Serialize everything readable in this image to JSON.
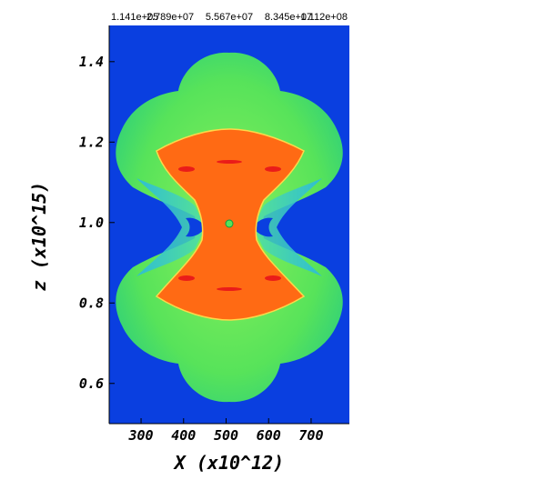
{
  "chart_data": {
    "type": "heatmap",
    "title": "",
    "xlabel": "X (x10^12)",
    "ylabel": "z (x10^15)",
    "xlim": [
      225,
      790
    ],
    "ylim": [
      0.5,
      1.49
    ],
    "x_ticks": [
      "300",
      "400",
      "500",
      "600",
      "700"
    ],
    "x_tick_values": [
      300,
      400,
      500,
      600,
      700
    ],
    "y_ticks": [
      "0.6",
      "0.8",
      "1.0",
      "1.2",
      "1.4"
    ],
    "y_tick_values": [
      0.6,
      0.8,
      1.0,
      1.2,
      1.4
    ],
    "colorbar": {
      "labels": [
        "1.141e+05",
        "2.789e+07",
        "5.567e+07",
        "8.345e+07",
        "1.112e+08"
      ],
      "placement": "top",
      "colors": [
        "#0000ff",
        "#00ffff",
        "#00ff66",
        "#b8ff00",
        "#ffff00",
        "#ff7700",
        "#ff0000"
      ]
    },
    "field": {
      "background": "#0a3fe0",
      "shell_color": "#57e35a",
      "core_color": "#ff6a14",
      "center_x": 500,
      "center_z": 1.0
    }
  }
}
